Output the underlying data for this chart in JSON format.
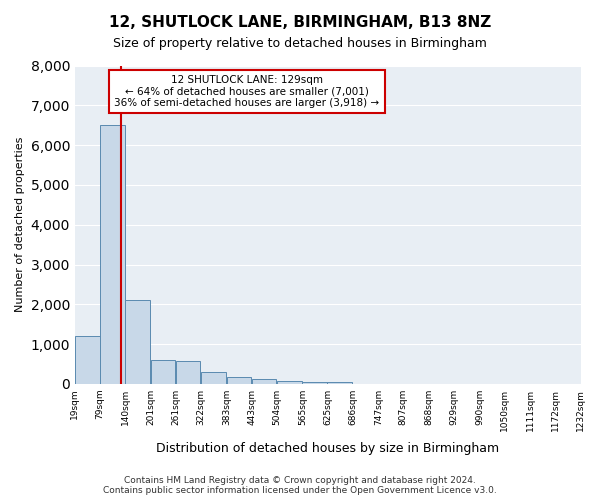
{
  "title": "12, SHUTLOCK LANE, BIRMINGHAM, B13 8NZ",
  "subtitle": "Size of property relative to detached houses in Birmingham",
  "xlabel": "Distribution of detached houses by size in Birmingham",
  "ylabel": "Number of detached properties",
  "annotation_title": "12 SHUTLOCK LANE: 129sqm",
  "annotation_line1": "← 64% of detached houses are smaller (7,001)",
  "annotation_line2": "36% of semi-detached houses are larger (3,918) →",
  "footer1": "Contains HM Land Registry data © Crown copyright and database right 2024.",
  "footer2": "Contains public sector information licensed under the Open Government Licence v3.0.",
  "property_size": 129,
  "bar_color": "#c8d8e8",
  "bar_edge_color": "#5a8ab0",
  "vline_color": "#cc0000",
  "annotation_box_color": "#cc0000",
  "background_color": "#e8eef4",
  "grid_color": "#ffffff",
  "bins": [
    19,
    79,
    140,
    201,
    261,
    322,
    383,
    443,
    504,
    565,
    625,
    686,
    747,
    807,
    868,
    929,
    990,
    1050,
    1111,
    1172,
    1232
  ],
  "bin_labels": [
    "19sqm",
    "79sqm",
    "140sqm",
    "201sqm",
    "261sqm",
    "322sqm",
    "383sqm",
    "443sqm",
    "504sqm",
    "565sqm",
    "625sqm",
    "686sqm",
    "747sqm",
    "807sqm",
    "868sqm",
    "929sqm",
    "990sqm",
    "1050sqm",
    "1111sqm",
    "1172sqm",
    "1232sqm"
  ],
  "counts": [
    1200,
    6500,
    2100,
    600,
    580,
    310,
    175,
    115,
    75,
    55,
    55,
    0,
    0,
    0,
    0,
    0,
    0,
    0,
    0,
    0,
    0
  ],
  "ylim": [
    0,
    8000
  ],
  "yticks": [
    0,
    1000,
    2000,
    3000,
    4000,
    5000,
    6000,
    7000,
    8000
  ]
}
